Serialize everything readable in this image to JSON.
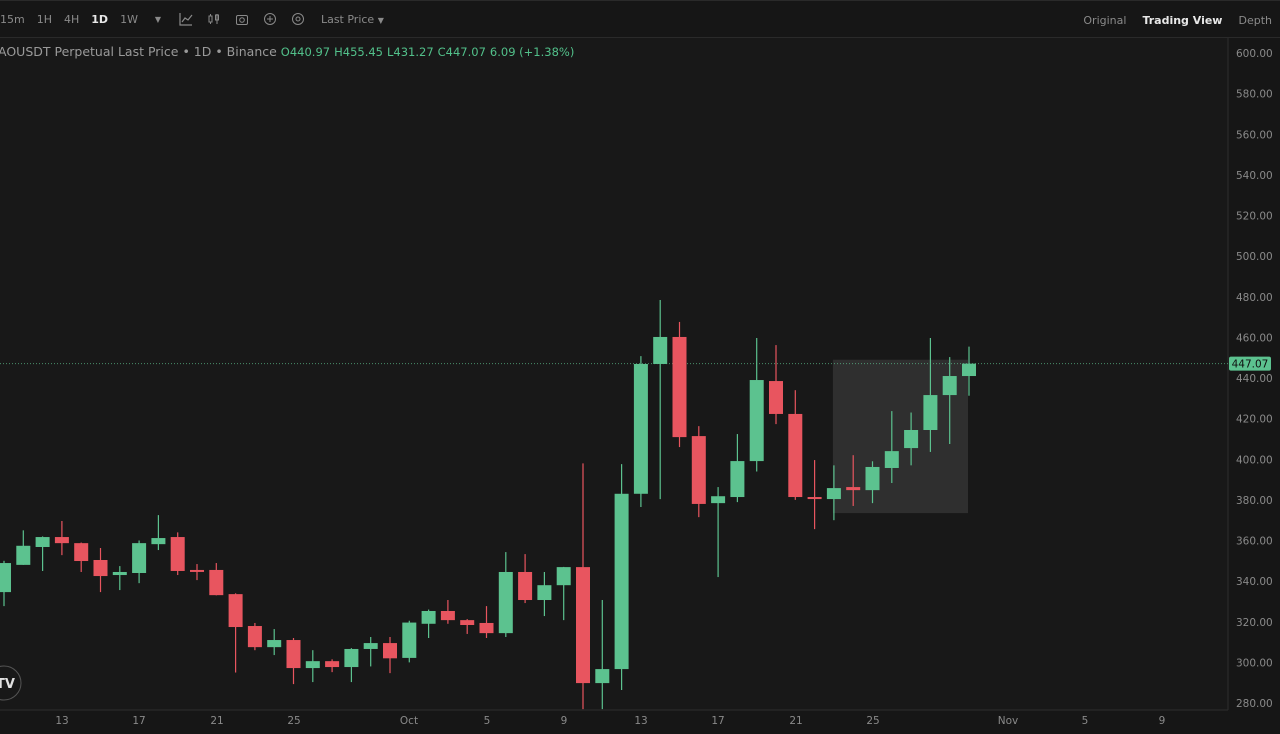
{
  "toolbar": {
    "timeframes": [
      "15m",
      "1H",
      "4H",
      "1D",
      "1W"
    ],
    "active_timeframe": "1D",
    "price_type": "Last Price",
    "icons": [
      "chevron-down-icon",
      "indicator-chart-icon",
      "candle-type-icon",
      "camera-icon",
      "plus-circle-icon",
      "settings-circle-icon"
    ],
    "views": [
      "Original",
      "Trading View",
      "Depth"
    ],
    "active_view": "Trading View"
  },
  "legend": {
    "symbol": "AOUSDT Perpetual Last Price • 1D • Binance",
    "open_label": "O",
    "open": "440.97",
    "high_label": "H",
    "high": "455.45",
    "low_label": "L",
    "low": "431.27",
    "close_label": "C",
    "close": "447.07",
    "change": "6.09 (+1.38%)"
  },
  "chart_data": {
    "type": "candlestick",
    "title": "AOUSDT Perpetual Last Price • 1D • Binance",
    "ylim": [
      280,
      600
    ],
    "y_ticks": [
      "600.00",
      "580.00",
      "560.00",
      "540.00",
      "520.00",
      "500.00",
      "480.00",
      "460.00",
      "440.00",
      "420.00",
      "400.00",
      "380.00",
      "360.00",
      "340.00",
      "320.00",
      "300.00",
      "280.00"
    ],
    "x_ticks": [
      "13",
      "17",
      "21",
      "25",
      "Oct",
      "5",
      "9",
      "13",
      "17",
      "21",
      "25",
      "Nov",
      "5",
      "9"
    ],
    "last_price": "447.07",
    "colors": {
      "up": "#5cc28f",
      "down": "#e8555f",
      "background": "#181818"
    },
    "highlight_box": {
      "from": "Oct 23",
      "to": "Oct 30",
      "price_low": 373.5,
      "price_high": 449
    },
    "candles": [
      {
        "date": "Sep 10",
        "o": 334.6,
        "h": 350,
        "l": 327.7,
        "c": 348.9
      },
      {
        "date": "Sep 11",
        "o": 348,
        "h": 365,
        "l": 348,
        "c": 357.4
      },
      {
        "date": "Sep 12",
        "o": 356.8,
        "h": 362,
        "l": 345,
        "c": 361.7
      },
      {
        "date": "Sep 13",
        "o": 361.7,
        "h": 369.6,
        "l": 352.8,
        "c": 358.7
      },
      {
        "date": "Sep 14",
        "o": 358.7,
        "h": 359,
        "l": 344.5,
        "c": 349.9
      },
      {
        "date": "Sep 15",
        "o": 350.4,
        "h": 356.3,
        "l": 334.6,
        "c": 342.5
      },
      {
        "date": "Sep 16",
        "o": 343,
        "h": 347.4,
        "l": 335.6,
        "c": 344.5
      },
      {
        "date": "Sep 17",
        "o": 344,
        "h": 360,
        "l": 339,
        "c": 358.7
      },
      {
        "date": "Sep 18",
        "o": 358.2,
        "h": 372.5,
        "l": 355.3,
        "c": 361.2
      },
      {
        "date": "Sep 19",
        "o": 361.7,
        "h": 364,
        "l": 343,
        "c": 345
      },
      {
        "date": "Sep 20",
        "o": 345.5,
        "h": 348.4,
        "l": 340.5,
        "c": 345
      },
      {
        "date": "Sep 21",
        "o": 345.5,
        "h": 348.9,
        "l": 333,
        "c": 333.1
      },
      {
        "date": "Sep 22",
        "o": 333.6,
        "h": 334,
        "l": 295,
        "c": 317.4
      },
      {
        "date": "Sep 23",
        "o": 317.9,
        "h": 319.4,
        "l": 306,
        "c": 307.5
      },
      {
        "date": "Sep 24",
        "o": 307.5,
        "h": 316.4,
        "l": 303.6,
        "c": 311
      },
      {
        "date": "Sep 25",
        "o": 311,
        "h": 312,
        "l": 289.3,
        "c": 297.2
      },
      {
        "date": "Sep 26",
        "o": 297.2,
        "h": 306,
        "l": 290.3,
        "c": 300.6
      },
      {
        "date": "Sep 27",
        "o": 300.6,
        "h": 301.5,
        "l": 295.2,
        "c": 297.7
      },
      {
        "date": "Sep 28",
        "o": 297.7,
        "h": 307,
        "l": 290.3,
        "c": 306.6
      },
      {
        "date": "Sep 29",
        "o": 306.6,
        "h": 312.5,
        "l": 298,
        "c": 309.5
      },
      {
        "date": "Sep 30",
        "o": 309.5,
        "h": 312.5,
        "l": 294.7,
        "c": 302
      },
      {
        "date": "Oct 1",
        "o": 302.2,
        "h": 320.5,
        "l": 300,
        "c": 319.6
      },
      {
        "date": "Oct 2",
        "o": 319,
        "h": 326,
        "l": 312,
        "c": 325.3
      },
      {
        "date": "Oct 3",
        "o": 325.3,
        "h": 330.7,
        "l": 319,
        "c": 320.8
      },
      {
        "date": "Oct 4",
        "o": 320.8,
        "h": 321.3,
        "l": 314,
        "c": 318.4
      },
      {
        "date": "Oct 5",
        "o": 319.4,
        "h": 327.7,
        "l": 312,
        "c": 314.4
      },
      {
        "date": "Oct 6",
        "o": 314.4,
        "h": 354.3,
        "l": 312.5,
        "c": 344.5
      },
      {
        "date": "Oct 7",
        "o": 344.5,
        "h": 353.3,
        "l": 329.2,
        "c": 330.7
      },
      {
        "date": "Oct 8",
        "o": 330.7,
        "h": 344.5,
        "l": 322.8,
        "c": 338
      },
      {
        "date": "Oct 9",
        "o": 338,
        "h": 347,
        "l": 320.8,
        "c": 346.9
      },
      {
        "date": "Oct 10",
        "o": 346.9,
        "h": 398,
        "l": 277,
        "c": 289.8
      },
      {
        "date": "Oct 11",
        "o": 289.8,
        "h": 330.7,
        "l": 277,
        "c": 296.7
      },
      {
        "date": "Oct 12",
        "o": 296.7,
        "h": 397.6,
        "l": 286.4,
        "c": 383
      },
      {
        "date": "Oct 13",
        "o": 383,
        "h": 450.8,
        "l": 376.5,
        "c": 446.9
      },
      {
        "date": "Oct 14",
        "o": 446.9,
        "h": 478.4,
        "l": 380.4,
        "c": 460.2
      },
      {
        "date": "Oct 15",
        "o": 460.2,
        "h": 467.6,
        "l": 406,
        "c": 410.9
      },
      {
        "date": "Oct 16",
        "o": 411.4,
        "h": 416.3,
        "l": 371.5,
        "c": 378
      },
      {
        "date": "Oct 17",
        "o": 378.4,
        "h": 386.3,
        "l": 342,
        "c": 381.8
      },
      {
        "date": "Oct 18",
        "o": 381.4,
        "h": 412.4,
        "l": 378.9,
        "c": 399.1
      },
      {
        "date": "Oct 19",
        "o": 399.1,
        "h": 459.7,
        "l": 394,
        "c": 439
      },
      {
        "date": "Oct 20",
        "o": 438.5,
        "h": 456.2,
        "l": 417.3,
        "c": 422.3
      },
      {
        "date": "Oct 21",
        "o": 422.3,
        "h": 434,
        "l": 380,
        "c": 381.4
      },
      {
        "date": "Oct 22",
        "o": 381.4,
        "h": 399.6,
        "l": 365.6,
        "c": 380.4
      },
      {
        "date": "Oct 23",
        "o": 380.4,
        "h": 397,
        "l": 370,
        "c": 385.8
      },
      {
        "date": "Oct 24",
        "o": 386.3,
        "h": 402,
        "l": 377,
        "c": 384.8
      },
      {
        "date": "Oct 25",
        "o": 384.8,
        "h": 399,
        "l": 378.4,
        "c": 396.2
      },
      {
        "date": "Oct 26",
        "o": 395.7,
        "h": 423.7,
        "l": 388.3,
        "c": 404
      },
      {
        "date": "Oct 27",
        "o": 405.5,
        "h": 423,
        "l": 397,
        "c": 414.4
      },
      {
        "date": "Oct 28",
        "o": 414.4,
        "h": 459.7,
        "l": 403.6,
        "c": 431.6
      },
      {
        "date": "Oct 29",
        "o": 431.6,
        "h": 450.3,
        "l": 407.5,
        "c": 440.97
      },
      {
        "date": "Oct 30",
        "o": 440.97,
        "h": 455.45,
        "l": 431.27,
        "c": 447.07
      }
    ]
  }
}
